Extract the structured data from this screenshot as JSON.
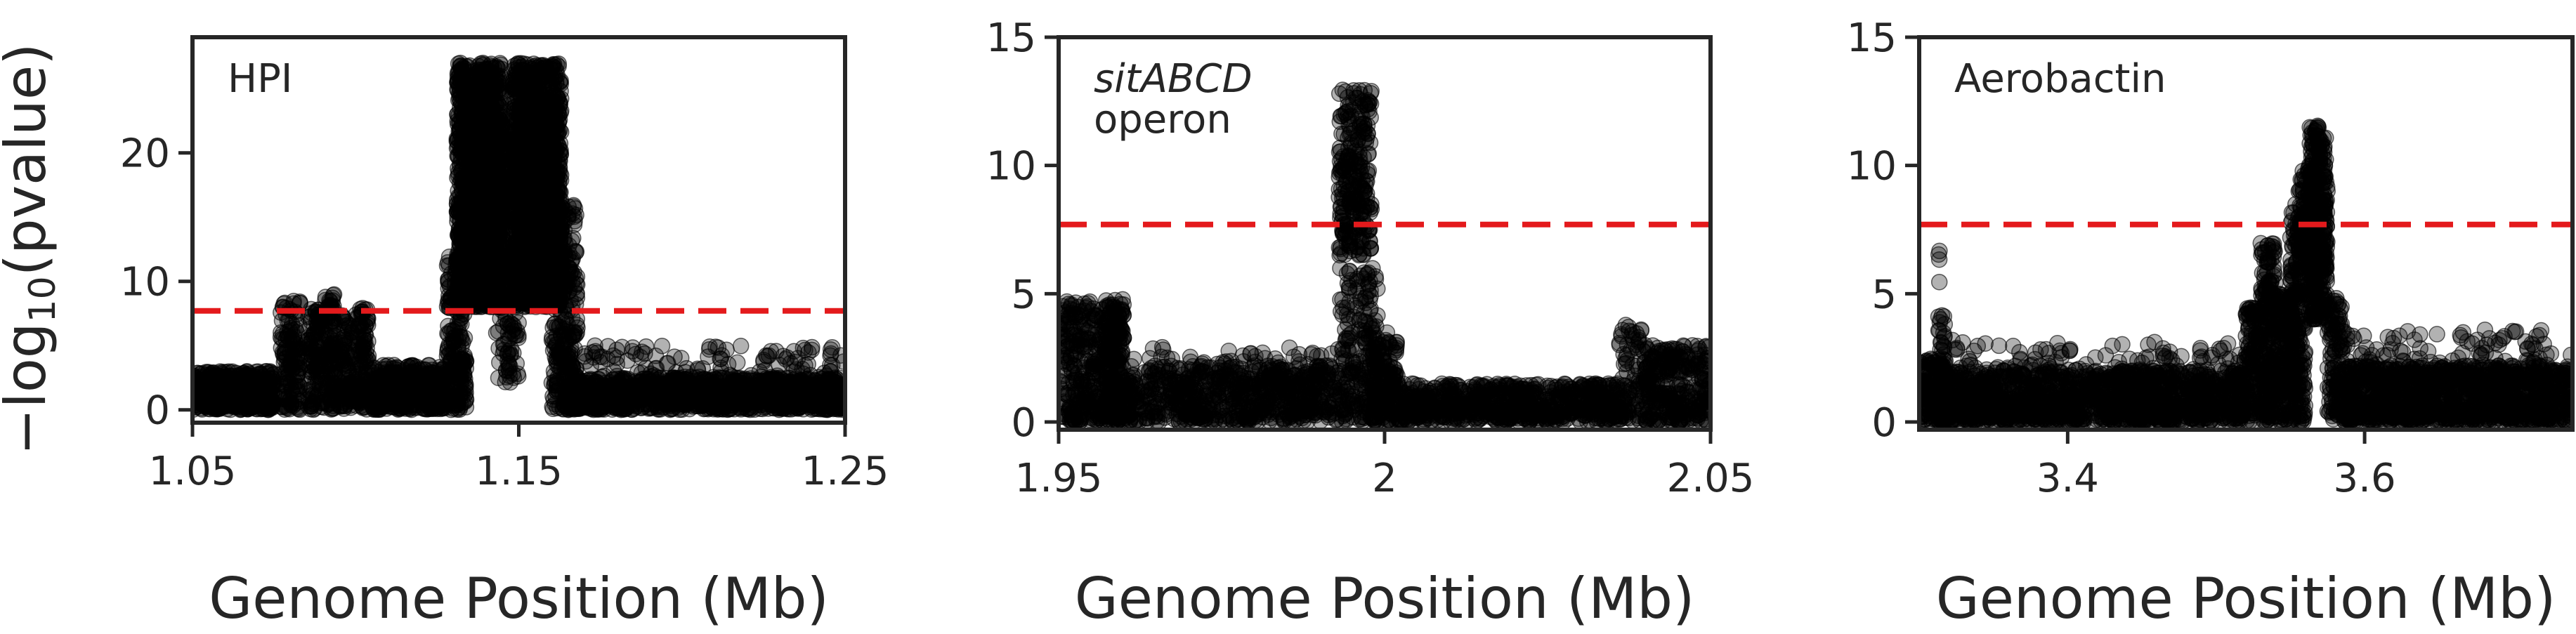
{
  "figure": {
    "ylabel_prefix": "−log",
    "ylabel_sub": "10",
    "ylabel_suffix": "(pvalue)",
    "point_color": "#000000",
    "threshold_color": "#e41a1c"
  },
  "chart_data": [
    {
      "type": "scatter",
      "title": "HPI",
      "title_lines": [
        "HPI"
      ],
      "xlabel": "Genome Position (Mb)",
      "ylabel": "−log10(pvalue)",
      "xlim": [
        1.05,
        1.25
      ],
      "ylim": [
        -1,
        29
      ],
      "xticks": [
        1.05,
        1.15,
        1.25
      ],
      "xtick_labels": [
        "1.05",
        "1.15",
        "1.25"
      ],
      "yticks": [
        0,
        10,
        20
      ],
      "ytick_labels": [
        "0",
        "10",
        "20"
      ],
      "threshold": 7.7,
      "legend": "none",
      "grid": false,
      "clusters": [
        {
          "x": [
            1.05,
            1.075
          ],
          "y": [
            0,
            3.0
          ],
          "n": 500
        },
        {
          "x": [
            1.077,
            1.083
          ],
          "y": [
            0,
            8.5
          ],
          "n": 140
        },
        {
          "x": [
            1.085,
            1.09
          ],
          "y": [
            0,
            8.0
          ],
          "n": 110
        },
        {
          "x": [
            1.09,
            1.094
          ],
          "y": [
            0,
            9.0
          ],
          "n": 110
        },
        {
          "x": [
            1.095,
            1.099
          ],
          "y": [
            0,
            7.5
          ],
          "n": 90
        },
        {
          "x": [
            1.1,
            1.104
          ],
          "y": [
            0,
            8.0
          ],
          "n": 110
        },
        {
          "x": [
            1.105,
            1.128
          ],
          "y": [
            0,
            3.5
          ],
          "n": 400
        },
        {
          "x": [
            1.128,
            1.134
          ],
          "y": [
            0,
            12.0
          ],
          "n": 200
        },
        {
          "x": [
            1.131,
            1.145
          ],
          "y": [
            8.0,
            27.0
          ],
          "n": 1400
        },
        {
          "x": [
            1.143,
            1.15
          ],
          "y": [
            2.0,
            22.0
          ],
          "n": 200
        },
        {
          "x": [
            1.148,
            1.163
          ],
          "y": [
            8.0,
            27.0
          ],
          "n": 1400
        },
        {
          "x": [
            1.16,
            1.168
          ],
          "y": [
            0.0,
            16.0
          ],
          "n": 300
        },
        {
          "x": [
            1.165,
            1.25
          ],
          "y": [
            0,
            2.5
          ],
          "n": 1200
        },
        {
          "x": [
            1.17,
            1.25
          ],
          "y": [
            2.5,
            5.0
          ],
          "n": 120
        }
      ]
    },
    {
      "type": "scatter",
      "title": "sitABCD operon",
      "title_lines": [
        "sitABCD",
        "operon"
      ],
      "xlabel": "Genome Position (Mb)",
      "ylabel": "",
      "xlim": [
        1.95,
        2.05
      ],
      "ylim": [
        -0.3,
        15
      ],
      "xticks": [
        1.95,
        2.0,
        2.05
      ],
      "xtick_labels": [
        "1.95",
        "2",
        "2.05"
      ],
      "yticks": [
        0,
        5,
        10,
        15
      ],
      "ytick_labels": [
        "0",
        "5",
        "10",
        "15"
      ],
      "threshold": 7.7,
      "legend": "none",
      "grid": false,
      "clusters": [
        {
          "x": [
            1.95,
            1.96
          ],
          "y": [
            0,
            4.8
          ],
          "n": 400
        },
        {
          "x": [
            1.957,
            1.96
          ],
          "y": [
            0,
            4.6
          ],
          "n": 120
        },
        {
          "x": [
            1.96,
            1.993
          ],
          "y": [
            0,
            2.2
          ],
          "n": 700
        },
        {
          "x": [
            1.96,
            1.993
          ],
          "y": [
            2.2,
            3.0
          ],
          "n": 40
        },
        {
          "x": [
            1.993,
            1.998
          ],
          "y": [
            6.5,
            13.0
          ],
          "n": 260
        },
        {
          "x": [
            1.993,
            1.999
          ],
          "y": [
            0,
            6.0
          ],
          "n": 200
        },
        {
          "x": [
            1.998,
            2.002
          ],
          "y": [
            0,
            3.5
          ],
          "n": 160
        },
        {
          "x": [
            2.002,
            2.037
          ],
          "y": [
            0,
            1.5
          ],
          "n": 700
        },
        {
          "x": [
            2.036,
            2.04
          ],
          "y": [
            0,
            3.8
          ],
          "n": 80
        },
        {
          "x": [
            2.04,
            2.05
          ],
          "y": [
            0,
            3.0
          ],
          "n": 300
        }
      ]
    },
    {
      "type": "scatter",
      "title": "Aerobactin",
      "title_lines": [
        "Aerobactin"
      ],
      "xlabel": "Genome Position (Mb)",
      "ylabel": "",
      "xlim": [
        3.3,
        3.74
      ],
      "ylim": [
        -0.3,
        15
      ],
      "xticks": [
        3.4,
        3.6
      ],
      "xtick_labels": [
        "3.4",
        "3.6"
      ],
      "yticks": [
        0,
        5,
        10,
        15
      ],
      "ytick_labels": [
        "0",
        "5",
        "10",
        "15"
      ],
      "threshold": 7.7,
      "legend": "none",
      "grid": false,
      "clusters": [
        {
          "x": [
            3.3,
            3.318
          ],
          "y": [
            0,
            2.5
          ],
          "n": 160
        },
        {
          "x": [
            3.313,
            3.315
          ],
          "y": [
            5.0,
            6.8
          ],
          "n": 4
        },
        {
          "x": [
            3.313,
            3.318
          ],
          "y": [
            0,
            4.2
          ],
          "n": 60
        },
        {
          "x": [
            3.318,
            3.52
          ],
          "y": [
            0,
            2.0
          ],
          "n": 1400
        },
        {
          "x": [
            3.318,
            3.52
          ],
          "y": [
            2.0,
            3.2
          ],
          "n": 100
        },
        {
          "x": [
            3.52,
            3.53
          ],
          "y": [
            0,
            4.5
          ],
          "n": 120
        },
        {
          "x": [
            3.53,
            3.54
          ],
          "y": [
            0,
            7.0
          ],
          "n": 200
        },
        {
          "x": [
            3.54,
            3.552
          ],
          "y": [
            0,
            5.0
          ],
          "n": 160
        },
        {
          "x": [
            3.55,
            3.56
          ],
          "y": [
            0,
            8.5
          ],
          "n": 220
        },
        {
          "x": [
            3.555,
            3.565
          ],
          "y": [
            6.0,
            10.0
          ],
          "n": 80
        },
        {
          "x": [
            3.562,
            3.575
          ],
          "y": [
            4.0,
            11.6
          ],
          "n": 340
        },
        {
          "x": [
            3.575,
            3.585
          ],
          "y": [
            0,
            5.0
          ],
          "n": 120
        },
        {
          "x": [
            3.585,
            3.74
          ],
          "y": [
            0,
            2.2
          ],
          "n": 1200
        },
        {
          "x": [
            3.585,
            3.74
          ],
          "y": [
            2.2,
            3.6
          ],
          "n": 90
        }
      ]
    }
  ]
}
